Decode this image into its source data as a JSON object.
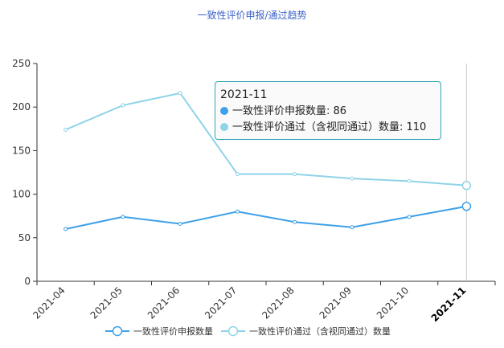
{
  "chart_data": {
    "type": "line",
    "title": "一致性评价申报/通过趋势",
    "categories": [
      "2021-04",
      "2021-05",
      "2021-06",
      "2021-07",
      "2021-08",
      "2021-09",
      "2021-10",
      "2021-11"
    ],
    "series": [
      {
        "name": "一致性评价申报数量",
        "values": [
          60,
          74,
          66,
          80,
          68,
          62,
          74,
          86
        ],
        "color": "#3ea0e8"
      },
      {
        "name": "一致性评价通过（含视同通过）数量",
        "values": [
          174,
          202,
          216,
          123,
          123,
          118,
          115,
          110
        ],
        "color": "#8fd3e8"
      }
    ],
    "ylim": [
      0,
      250
    ],
    "yticks": [
      0,
      50,
      100,
      150,
      200,
      250
    ],
    "legend_position": "bottom",
    "highlighted_category": "2021-11"
  },
  "tooltip": {
    "title": "2021-11",
    "rows": [
      {
        "label": "一致性评价申报数量: 86",
        "color": "#3ea0e8"
      },
      {
        "label": "一致性评价通过（含视同通过）数量: 110",
        "color": "#8fd3e8"
      }
    ]
  }
}
